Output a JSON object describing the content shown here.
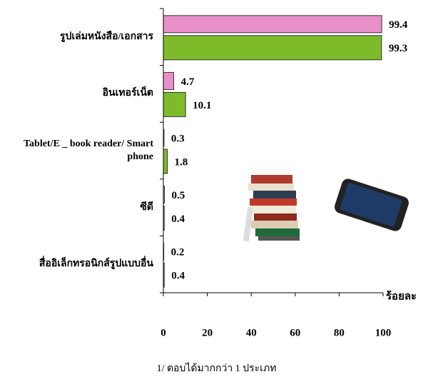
{
  "chart_data": {
    "type": "bar",
    "orientation": "horizontal",
    "categories": [
      "รูปเล่มหนังสือ/เอกสาร",
      "อินเทอร์เน็ต",
      "Tablet/E _ book reader/ Smart phone",
      "ซีดี",
      "สื่ออิเล็กทรอนิกส์รูปแบบอื่น"
    ],
    "series": [
      {
        "color": "#e98fc8",
        "values": [
          99.4,
          4.7,
          0.3,
          0.5,
          0.2
        ]
      },
      {
        "color": "#7dbb2a",
        "values": [
          99.3,
          10.1,
          1.8,
          0.4,
          0.4
        ]
      }
    ],
    "xlabel": "ร้อยละ",
    "xlim": [
      0,
      100
    ],
    "xticks": [
      0,
      20,
      40,
      60,
      80,
      100
    ],
    "footnote": "1/ ตอบได้มากกว่า 1 ประเภท"
  }
}
